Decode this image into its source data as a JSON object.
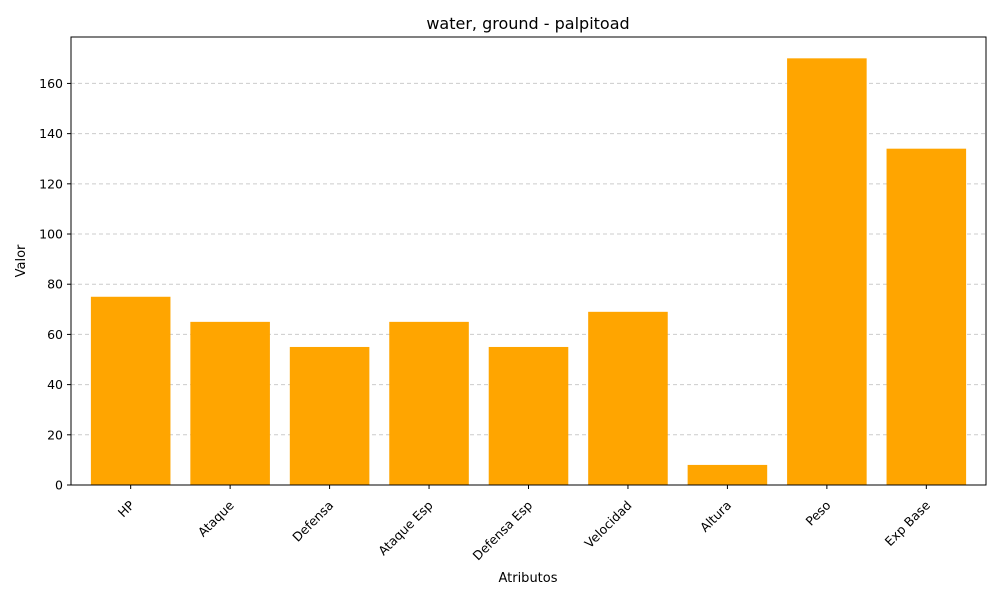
{
  "chart_data": {
    "type": "bar",
    "title": "water, ground - palpitoad",
    "xlabel": "Atributos",
    "ylabel": "Valor",
    "categories": [
      "HP",
      "Ataque",
      "Defensa",
      "Ataque Esp",
      "Defensa Esp",
      "Velocidad",
      "Altura",
      "Peso",
      "Exp Base"
    ],
    "values": [
      75,
      65,
      55,
      65,
      55,
      69,
      8,
      170,
      134
    ],
    "ylim": [
      0,
      178.5
    ],
    "yticks": [
      0,
      20,
      40,
      60,
      80,
      100,
      120,
      140,
      160
    ],
    "grid": "y-dashed",
    "bar_color": "#ffa500"
  }
}
